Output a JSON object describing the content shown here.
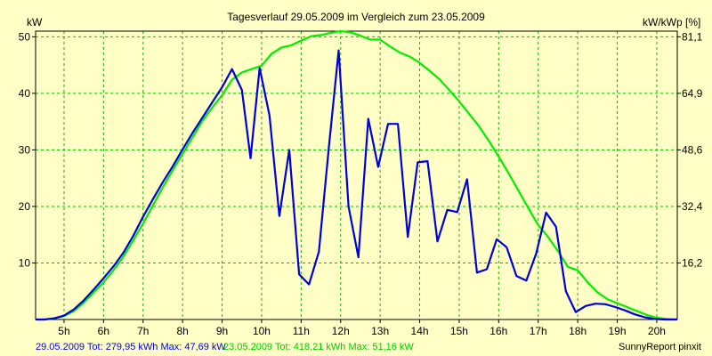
{
  "chart_data": {
    "type": "line",
    "title": "Tagesverlauf 29.05.2009 im Vergleich zum 23.05.2009",
    "ylabel_left": "kW",
    "ylabel_right": "kW/kWp [%]",
    "x_ticks": [
      "5h",
      "6h",
      "7h",
      "8h",
      "9h",
      "10h",
      "11h",
      "12h",
      "13h",
      "14h",
      "15h",
      "16h",
      "17h",
      "18h",
      "19h",
      "20h"
    ],
    "y_ticks_left": [
      "10",
      "20",
      "30",
      "40",
      "50"
    ],
    "y_ticks_right": [
      "16,2",
      "32,4",
      "48,6",
      "64,9",
      "81,1"
    ],
    "xlim": [
      4.28,
      20.52
    ],
    "ylim": [
      0,
      51
    ],
    "grid": true,
    "grid_color": "#00c000",
    "background": "#ffffc6",
    "series": [
      {
        "name": "29.05.2009",
        "color": "#0000dd",
        "x": [
          4.3,
          4.5,
          4.75,
          5.0,
          5.25,
          5.5,
          5.75,
          6.0,
          6.25,
          6.5,
          6.75,
          7.0,
          7.25,
          7.5,
          7.75,
          8.0,
          8.25,
          8.5,
          8.75,
          9.0,
          9.25,
          9.5,
          9.72,
          9.95,
          10.2,
          10.45,
          10.7,
          10.95,
          11.2,
          11.45,
          11.7,
          11.95,
          12.2,
          12.45,
          12.7,
          12.95,
          13.2,
          13.45,
          13.7,
          13.95,
          14.2,
          14.45,
          14.7,
          14.95,
          15.2,
          15.45,
          15.7,
          15.95,
          16.2,
          16.45,
          16.7,
          16.95,
          17.2,
          17.45,
          17.7,
          17.95,
          18.2,
          18.45,
          18.7,
          18.95,
          19.2,
          19.45,
          19.7,
          19.95,
          20.2,
          20.5
        ],
        "y": [
          0,
          0,
          0.2,
          0.7,
          1.8,
          3.4,
          5.3,
          7.3,
          9.4,
          11.8,
          14.8,
          18.2,
          21.3,
          24.3,
          27.1,
          30.1,
          33,
          35.7,
          38.4,
          41.1,
          44.3,
          40.6,
          28.5,
          44.5,
          36.1,
          18.3,
          30,
          8,
          6.2,
          12,
          30.3,
          47.6,
          20,
          11,
          35.5,
          27,
          34.6,
          34.6,
          14.6,
          27.8,
          28,
          13.8,
          19.4,
          19,
          24.8,
          8.3,
          8.9,
          14.2,
          12.8,
          7.7,
          6.9,
          11.7,
          18.9,
          16.4,
          5,
          1.3,
          2.4,
          2.8,
          2.7,
          2.2,
          1.6,
          0.9,
          0.4,
          0.1,
          0,
          0
        ]
      },
      {
        "name": "23.05.2009",
        "color": "#00ee00",
        "x": [
          4.3,
          4.5,
          4.75,
          5.0,
          5.25,
          5.5,
          5.75,
          6.0,
          6.25,
          6.5,
          6.75,
          7.0,
          7.25,
          7.5,
          7.75,
          8.0,
          8.25,
          8.5,
          8.75,
          9.0,
          9.25,
          9.5,
          9.75,
          10.0,
          10.25,
          10.5,
          10.75,
          11.0,
          11.25,
          11.5,
          11.75,
          12.0,
          12.25,
          12.5,
          12.75,
          13.0,
          13.25,
          13.5,
          13.75,
          14.0,
          14.25,
          14.5,
          14.75,
          15.0,
          15.25,
          15.5,
          15.75,
          16.0,
          16.25,
          16.5,
          16.75,
          17.0,
          17.25,
          17.5,
          17.75,
          18.0,
          18.25,
          18.5,
          18.75,
          19.0,
          19.25,
          19.5,
          19.75,
          20.0,
          20.25,
          20.5
        ],
        "y": [
          0,
          0,
          0.2,
          0.6,
          1.5,
          3,
          4.8,
          6.6,
          8.7,
          11.1,
          14,
          17,
          20.2,
          23.4,
          26.4,
          29.3,
          32.2,
          35.1,
          37.5,
          39.7,
          42.4,
          43.7,
          44.3,
          44.9,
          47,
          48.1,
          48.5,
          49.3,
          50.1,
          50.3,
          50.7,
          51,
          50.8,
          50.2,
          49.5,
          49.5,
          48.3,
          47.2,
          46.5,
          45.4,
          44,
          42.5,
          40.6,
          38.6,
          36.4,
          34.2,
          31.6,
          28.8,
          25.9,
          22.8,
          19.7,
          16.7,
          14.6,
          12.1,
          9.3,
          8.7,
          6.6,
          4.8,
          3.6,
          2.9,
          2.2,
          1.5,
          0.8,
          0.3,
          0.1,
          0
        ]
      }
    ]
  },
  "footer": {
    "series1_text": "29.05.2009 Tot: 279,95 kWh Max: 47,69 kW",
    "series2_text": "23.05.2009 Tot: 418,21 kWh Max: 51,16 kW",
    "brand": "SunnyReport pinxit"
  }
}
